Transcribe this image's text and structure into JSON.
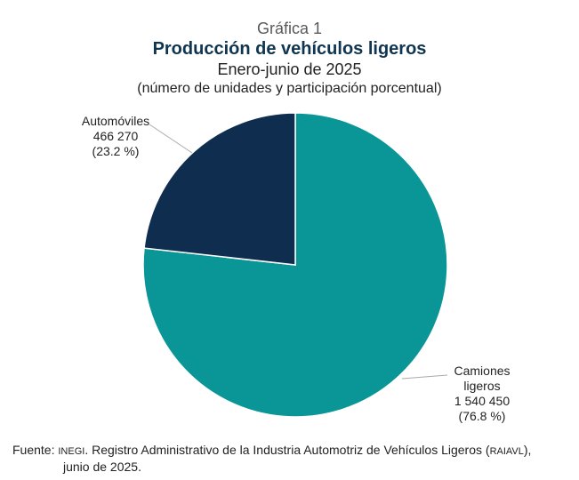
{
  "header": {
    "kicker": "Gráfica 1",
    "title": "Producción de vehículos ligeros",
    "subtitle": "Enero-junio de 2025",
    "units": "(número de unidades y participación porcentual)"
  },
  "chart_data": {
    "type": "pie",
    "title": "Producción de vehículos ligeros",
    "slices": [
      {
        "label": "Automóviles",
        "value": 466270,
        "value_label": "466 270",
        "percent_label": "(23.2 %)",
        "color": "#0f2d4e"
      },
      {
        "label": "Camiones ligeros",
        "value": 1540450,
        "value_label": "1 540 450",
        "percent_label": "(76.8 %)",
        "color": "#0a9596"
      }
    ]
  },
  "labels": {
    "auto_name": "Automóviles",
    "cam_name_1": "Camiones",
    "cam_name_2": "ligeros"
  },
  "source": {
    "prefix": "Fuente:",
    "org": "INEGI",
    "text1": ". Registro Administrativo de la Industria Automotriz de Vehículos Ligeros (",
    "abbr": "RAIAVL",
    "text2": "),",
    "line2": "junio de 2025."
  }
}
